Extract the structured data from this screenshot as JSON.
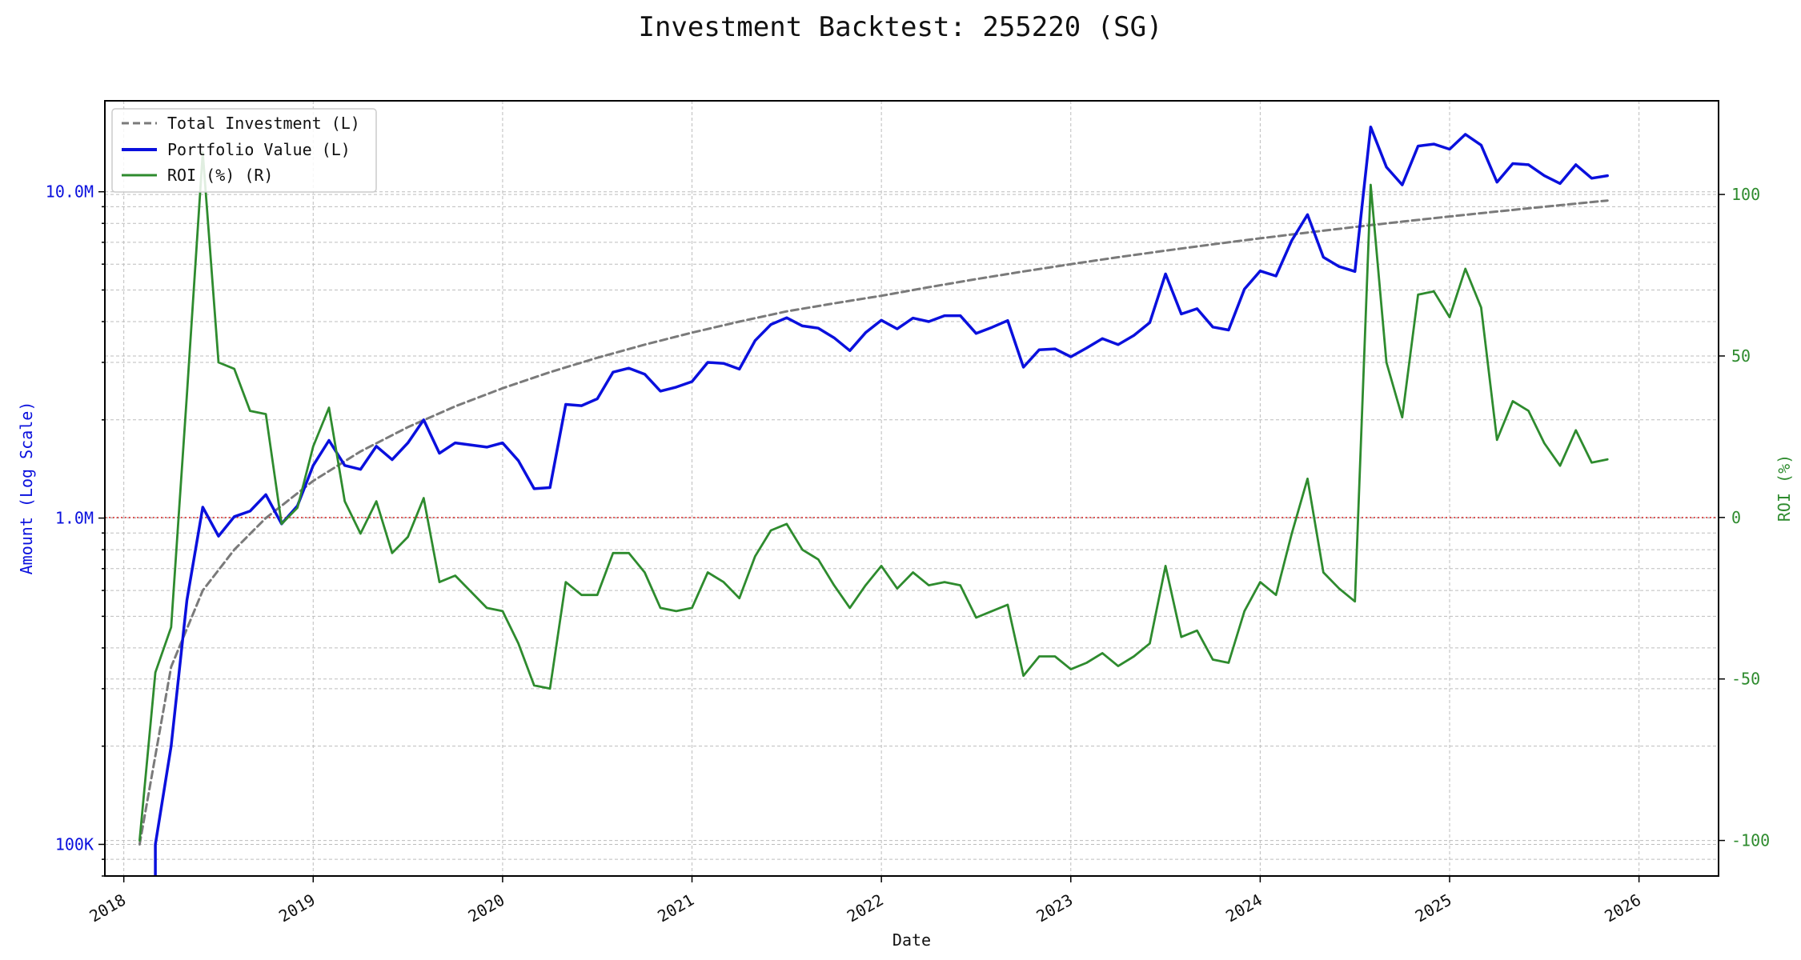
{
  "chart_data": {
    "type": "line",
    "title": "Investment Backtest: 255220 (SG)",
    "xlabel": "Date",
    "ylabel_left": "Amount (Log Scale)",
    "ylabel_right": "ROI (%)",
    "left_axis": {
      "scale": "log",
      "range": [
        80000,
        19000000
      ],
      "ticks": [
        {
          "value": 100000,
          "label": "100K"
        },
        {
          "value": 1000000,
          "label": "1.0M"
        },
        {
          "value": 10000000,
          "label": "10.0M"
        }
      ]
    },
    "right_axis": {
      "scale": "linear",
      "range": [
        -111,
        129
      ],
      "ticks": [
        -100,
        -50,
        0,
        50,
        100
      ]
    },
    "x_ticks": [
      "2018",
      "2019",
      "2020",
      "2021",
      "2022",
      "2023",
      "2024",
      "2025",
      "2026"
    ],
    "reference_line": {
      "axis": "right",
      "value": 0,
      "style": "dotted",
      "color": "#e03030"
    },
    "grid": true,
    "legend_position": "top-left",
    "colors": {
      "total_investment": "#7a7a7a",
      "portfolio_value": "#0a10dd",
      "roi": "#2e8b2e",
      "left_axis": "#0a10dd",
      "right_axis": "#2e8b2e"
    },
    "series": [
      {
        "name": "Total Investment (L)",
        "axis": "left",
        "style": "dashed",
        "x": [
          "2018-02",
          "2018-04",
          "2018-06",
          "2018-08",
          "2018-10",
          "2019-01",
          "2019-04",
          "2019-07",
          "2019-10",
          "2020-01",
          "2020-04",
          "2020-07",
          "2020-10",
          "2021-01",
          "2021-04",
          "2021-07",
          "2021-10",
          "2022-01",
          "2022-04",
          "2022-07",
          "2022-10",
          "2023-01",
          "2023-04",
          "2023-07",
          "2023-10",
          "2024-01",
          "2024-04",
          "2024-07",
          "2024-10",
          "2025-01",
          "2025-04",
          "2025-07",
          "2025-11"
        ],
        "y": [
          100000,
          350000,
          600000,
          800000,
          1000000,
          1300000,
          1600000,
          1900000,
          2200000,
          2500000,
          2800000,
          3100000,
          3400000,
          3700000,
          4000000,
          4300000,
          4550000,
          4800000,
          5100000,
          5400000,
          5700000,
          6000000,
          6300000,
          6600000,
          6900000,
          7200000,
          7500000,
          7800000,
          8100000,
          8400000,
          8700000,
          9000000,
          9400000
        ]
      },
      {
        "name": "Portfolio Value (L)",
        "axis": "left",
        "style": "solid",
        "x": [
          "2018-03",
          "2018-03",
          "2018-04",
          "2018-05",
          "2018-06",
          "2018-07",
          "2018-08",
          "2018-09",
          "2018-10",
          "2018-11",
          "2018-12",
          "2019-01",
          "2019-02",
          "2019-03",
          "2019-04",
          "2019-05",
          "2019-06",
          "2019-07",
          "2019-08",
          "2019-09",
          "2019-10",
          "2019-12",
          "2020-01",
          "2020-02",
          "2020-03",
          "2020-04",
          "2020-05",
          "2020-06",
          "2020-07",
          "2020-08",
          "2020-09",
          "2020-10",
          "2020-11",
          "2020-12",
          "2021-01",
          "2021-02",
          "2021-03",
          "2021-04",
          "2021-05",
          "2021-06",
          "2021-07",
          "2021-08",
          "2021-09",
          "2021-10",
          "2021-11",
          "2021-12",
          "2022-01",
          "2022-02",
          "2022-03",
          "2022-04",
          "2022-05",
          "2022-06",
          "2022-07",
          "2022-08",
          "2022-09",
          "2022-10",
          "2022-11",
          "2022-12",
          "2023-01",
          "2023-02",
          "2023-03",
          "2023-04",
          "2023-05",
          "2023-06",
          "2023-07",
          "2023-08",
          "2023-09",
          "2023-10",
          "2023-11",
          "2023-12",
          "2024-01",
          "2024-02",
          "2024-03",
          "2024-04",
          "2024-05",
          "2024-06",
          "2024-07",
          "2024-08",
          "2024-09",
          "2024-10",
          "2024-11",
          "2024-12",
          "2025-01",
          "2025-02",
          "2025-03",
          "2025-04",
          "2025-05",
          "2025-06",
          "2025-07",
          "2025-08",
          "2025-09",
          "2025-10",
          "2025-11"
        ],
        "y": [
          80000,
          100000,
          200000,
          560000,
          1080000,
          880000,
          1010000,
          1050000,
          1180000,
          960000,
          1090000,
          1450000,
          1730000,
          1450000,
          1410000,
          1660000,
          1510000,
          1700000,
          2000000,
          1580000,
          1700000,
          1650000,
          1700000,
          1500000,
          1230000,
          1240000,
          2230000,
          2210000,
          2320000,
          2800000,
          2880000,
          2760000,
          2450000,
          2520000,
          2620000,
          3000000,
          2980000,
          2860000,
          3500000,
          3920000,
          4110000,
          3880000,
          3820000,
          3570000,
          3260000,
          3700000,
          4040000,
          3800000,
          4100000,
          4000000,
          4170000,
          4170000,
          3680000,
          3840000,
          4030000,
          2900000,
          3280000,
          3300000,
          3120000,
          3320000,
          3550000,
          3400000,
          3630000,
          3970000,
          5600000,
          4220000,
          4380000,
          3850000,
          3770000,
          5030000,
          5720000,
          5520000,
          7090000,
          8510000,
          6300000,
          5900000,
          5700000,
          15800000,
          11900000,
          10500000,
          13800000,
          14000000,
          13500000,
          15000000,
          13900000,
          10700000,
          12200000,
          12100000,
          11200000,
          10600000,
          12100000,
          11000000,
          11200000
        ]
      },
      {
        "name": "ROI (%) (R)",
        "axis": "right",
        "style": "solid",
        "x": [
          "2018-02",
          "2018-03",
          "2018-04",
          "2018-05",
          "2018-06",
          "2018-07",
          "2018-08",
          "2018-09",
          "2018-10",
          "2018-11",
          "2018-12",
          "2019-01",
          "2019-02",
          "2019-03",
          "2019-04",
          "2019-05",
          "2019-06",
          "2019-07",
          "2019-08",
          "2019-09",
          "2019-10",
          "2019-12",
          "2020-01",
          "2020-02",
          "2020-03",
          "2020-04",
          "2020-05",
          "2020-06",
          "2020-07",
          "2020-08",
          "2020-09",
          "2020-10",
          "2020-11",
          "2020-12",
          "2021-01",
          "2021-02",
          "2021-03",
          "2021-04",
          "2021-05",
          "2021-06",
          "2021-07",
          "2021-08",
          "2021-09",
          "2021-10",
          "2021-11",
          "2021-12",
          "2022-01",
          "2022-02",
          "2022-03",
          "2022-04",
          "2022-05",
          "2022-06",
          "2022-07",
          "2022-08",
          "2022-09",
          "2022-10",
          "2022-11",
          "2022-12",
          "2023-01",
          "2023-02",
          "2023-03",
          "2023-04",
          "2023-05",
          "2023-06",
          "2023-07",
          "2023-08",
          "2023-09",
          "2023-10",
          "2023-11",
          "2023-12",
          "2024-01",
          "2024-02",
          "2024-03",
          "2024-04",
          "2024-05",
          "2024-06",
          "2024-07",
          "2024-08",
          "2024-09",
          "2024-10",
          "2024-11",
          "2024-12",
          "2025-01",
          "2025-02",
          "2025-03",
          "2025-04",
          "2025-05",
          "2025-06",
          "2025-07",
          "2025-08",
          "2025-09",
          "2025-10",
          "2025-11"
        ],
        "y": [
          -100,
          -48,
          -34,
          38,
          113,
          48,
          46,
          33,
          32,
          -2,
          3,
          22,
          34,
          5,
          -5,
          5,
          -11,
          -6,
          6,
          -20,
          -18,
          -28,
          -29,
          -39,
          -52,
          -53,
          -20,
          -24,
          -24,
          -11,
          -11,
          -17,
          -28,
          -29,
          -28,
          -17,
          -20,
          -25,
          -12,
          -4,
          -2,
          -10,
          -13,
          -21,
          -28,
          -21,
          -15,
          -22,
          -17,
          -21,
          -20,
          -21,
          -31,
          -29,
          -27,
          -49,
          -43,
          -43,
          -47,
          -45,
          -42,
          -46,
          -43,
          -39,
          -15,
          -37,
          -35,
          -44,
          -45,
          -29,
          -20,
          -24,
          -5,
          12,
          -17,
          -22,
          -26,
          103,
          48,
          31,
          69,
          70,
          62,
          77,
          65,
          24,
          36,
          33,
          23,
          16,
          27,
          17,
          18
        ]
      }
    ]
  }
}
